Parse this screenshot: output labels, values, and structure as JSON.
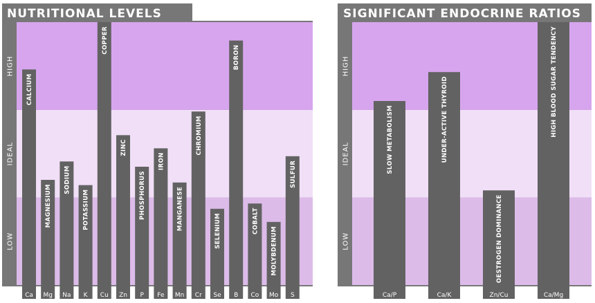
{
  "colors": {
    "frame": "#777777",
    "bar": "#626262",
    "high_band": "#d7a5ee",
    "ideal_band": "#f1dff7",
    "low_band": "#dcbbe9",
    "text": "#ffffff"
  },
  "chart_data": [
    {
      "type": "bar",
      "title": "NUTRITIONAL LEVELS",
      "bands": [
        "LOW",
        "IDEAL",
        "HIGH"
      ],
      "ylim": [
        0,
        100
      ],
      "band_edges": [
        33.3,
        66.6
      ],
      "categories": [
        "Ca",
        "Mg",
        "Na",
        "K",
        "Cu",
        "Zn",
        "P",
        "Fe",
        "Mn",
        "Cr",
        "Se",
        "B",
        "Co",
        "Mo",
        "S"
      ],
      "labels": [
        "CALCIUM",
        "MAGNESIUM",
        "SODIUM",
        "POTASSIUM",
        "COPPER",
        "ZINC",
        "PHOSPHORUS",
        "IRON",
        "MANGANESE",
        "CHROMIUM",
        "SELENIUM",
        "BORON",
        "COBALT",
        "MOLYBDENUM",
        "SULFUR"
      ],
      "values": [
        82,
        40,
        47,
        38,
        100,
        57,
        45,
        52,
        39,
        66,
        29,
        93,
        31,
        24,
        49
      ]
    },
    {
      "type": "bar",
      "title": "SIGNIFICANT ENDOCRINE RATIOS",
      "bands": [
        "LOW",
        "IDEAL",
        "HIGH"
      ],
      "ylim": [
        0,
        100
      ],
      "band_edges": [
        33.3,
        66.6
      ],
      "categories": [
        "Ca/P",
        "Ca/K",
        "Zn/Cu",
        "Ca/Mg"
      ],
      "labels": [
        "SLOW METABOLISM",
        "UNDER-ACTIVE THYROID",
        "OESTROGEN DOMINANCE",
        "HIGH BLOOD SUGAR TENDENCY"
      ],
      "values": [
        70,
        81,
        36,
        100
      ]
    }
  ]
}
